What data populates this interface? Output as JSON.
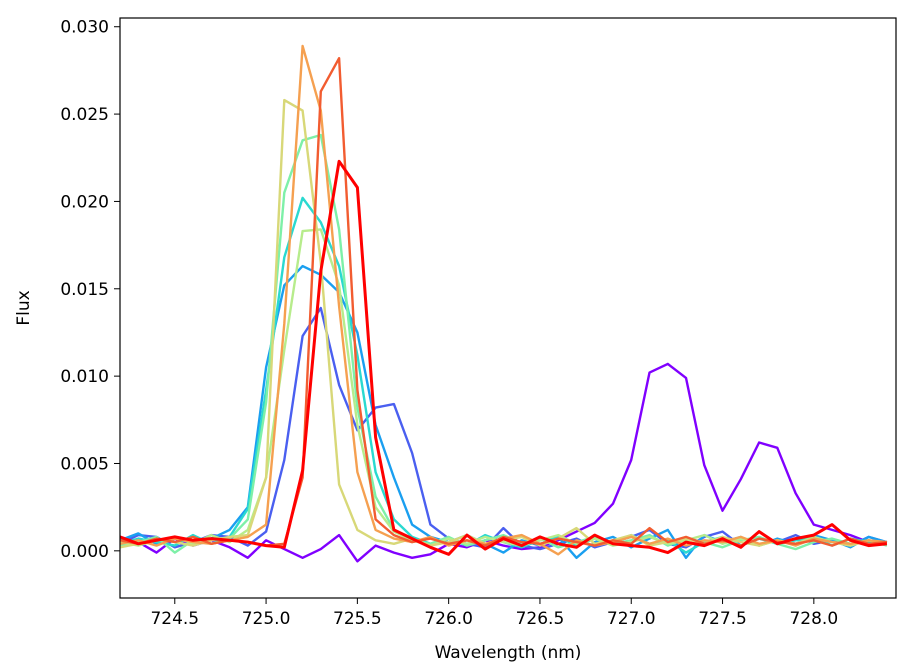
{
  "chart_data": {
    "type": "line",
    "xlabel": "Wavelength (nm)",
    "ylabel": "Flux",
    "xlim": [
      724.2,
      728.45
    ],
    "ylim": [
      -0.0027,
      0.0305
    ],
    "xticks": [
      724.5,
      725.0,
      725.5,
      726.0,
      726.5,
      727.0,
      727.5,
      728.0
    ],
    "xtick_labels": [
      "724.5",
      "725.0",
      "725.5",
      "726.0",
      "726.5",
      "727.0",
      "727.5",
      "728.0"
    ],
    "yticks": [
      0.0,
      0.005,
      0.01,
      0.015,
      0.02,
      0.025,
      0.03
    ],
    "ytick_labels": [
      "0.000",
      "0.005",
      "0.010",
      "0.015",
      "0.020",
      "0.025",
      "0.030"
    ],
    "grid": false,
    "legend": "none",
    "x": [
      724.2,
      724.3,
      724.4,
      724.5,
      724.6,
      724.7,
      724.8,
      724.9,
      725.0,
      725.1,
      725.2,
      725.3,
      725.4,
      725.5,
      725.6,
      725.7,
      725.8,
      725.9,
      726.0,
      726.1,
      726.2,
      726.3,
      726.4,
      726.5,
      726.6,
      726.7,
      726.8,
      726.9,
      727.0,
      727.1,
      727.2,
      727.3,
      727.4,
      727.5,
      727.6,
      727.7,
      727.8,
      727.9,
      728.0,
      728.1,
      728.2,
      728.3,
      728.4
    ],
    "series": [
      {
        "color": "#8000ff",
        "values": [
          0.0008,
          0.0005,
          -0.0001,
          0.0007,
          0.0003,
          0.0006,
          0.0002,
          -0.0004,
          0.0006,
          0.0001,
          -0.0004,
          0.0001,
          0.0009,
          -0.0006,
          0.0003,
          -0.0001,
          -0.0004,
          -0.0002,
          0.0004,
          0.0002,
          0.0006,
          0.0003,
          0.0001,
          0.0002,
          0.0006,
          0.0011,
          0.0016,
          0.0027,
          0.0052,
          0.0102,
          0.0107,
          0.0099,
          0.0049,
          0.0023,
          0.0041,
          0.0062,
          0.0059,
          0.0033,
          0.0015,
          0.0012,
          0.0009,
          0.0005,
          0.0004
        ]
      },
      {
        "color": "#4a5ff0",
        "values": [
          0.0004,
          0.0009,
          0.0008,
          0.0002,
          0.0005,
          0.0009,
          0.0008,
          0.0003,
          0.0011,
          0.0052,
          0.0123,
          0.0139,
          0.0095,
          0.0069,
          0.0082,
          0.0084,
          0.0056,
          0.0015,
          0.0007,
          0.0004,
          0.0002,
          0.0013,
          0.0003,
          0.0001,
          0.0004,
          0.0007,
          0.0002,
          0.0005,
          0.0008,
          0.0012,
          0.0004,
          0.0002,
          0.0008,
          0.0011,
          0.0003,
          0.0007,
          0.0005,
          0.0009,
          0.0004,
          0.0006,
          0.0003,
          0.0008,
          0.0005
        ]
      },
      {
        "color": "#1a9ff0",
        "values": [
          0.0006,
          0.001,
          0.0004,
          0.0008,
          0.0004,
          0.0007,
          0.0012,
          0.0025,
          0.0105,
          0.0152,
          0.0163,
          0.0158,
          0.0148,
          0.0125,
          0.0072,
          0.0042,
          0.0015,
          0.0008,
          0.0005,
          0.0009,
          0.0004,
          -0.0001,
          0.0006,
          0.0003,
          0.0008,
          -0.0004,
          0.0005,
          0.0008,
          0.0002,
          0.0007,
          0.0012,
          -0.0004,
          0.0009,
          0.0005,
          0.0008,
          0.0003,
          0.0007,
          0.0004,
          0.0009,
          0.0006,
          0.0002,
          0.0008,
          0.0005
        ]
      },
      {
        "color": "#2ad9d0",
        "values": [
          0.0004,
          0.0007,
          0.0005,
          0.0003,
          0.0009,
          0.0004,
          0.0008,
          0.0024,
          0.0092,
          0.0168,
          0.0202,
          0.0188,
          0.0163,
          0.0112,
          0.0045,
          0.0018,
          0.0008,
          0.0004,
          0.0007,
          0.0003,
          0.0009,
          0.0005,
          0.0002,
          0.0006,
          0.0008,
          0.0003,
          0.0007,
          0.0005,
          0.0009,
          0.0004,
          0.0006,
          -0.0001,
          0.0005,
          0.0008,
          0.0003,
          0.0007,
          0.0004,
          0.0006,
          0.0008,
          0.0003,
          0.0007,
          0.0005,
          0.0004
        ]
      },
      {
        "color": "#7ef0a8",
        "values": [
          0.0003,
          0.0005,
          0.0008,
          -0.0001,
          0.0006,
          0.0004,
          0.0007,
          0.0018,
          0.0085,
          0.0205,
          0.0235,
          0.0238,
          0.0184,
          0.0082,
          0.0031,
          0.0012,
          0.0006,
          0.0004,
          0.0008,
          0.0003,
          0.0006,
          0.0009,
          0.0004,
          0.0007,
          0.0002,
          0.0005,
          0.0008,
          0.0004,
          0.0006,
          0.0009,
          0.0003,
          0.0007,
          0.0005,
          0.0002,
          0.0006,
          0.0008,
          0.0004,
          0.0001,
          0.0005,
          0.0007,
          0.0004,
          0.0006,
          0.0003
        ]
      },
      {
        "color": "#b7ec8c",
        "values": [
          0.0005,
          0.0003,
          0.0006,
          0.0008,
          0.0004,
          0.0009,
          0.0005,
          0.0012,
          0.0042,
          0.0115,
          0.0183,
          0.0184,
          0.0152,
          0.0072,
          0.0025,
          0.0011,
          0.0006,
          0.0003,
          0.0007,
          0.0004,
          0.0008,
          0.0005,
          0.0003,
          0.0006,
          0.0009,
          0.0004,
          0.0007,
          0.0003,
          0.0005,
          0.0008,
          0.0004,
          0.0006,
          0.0009,
          0.0004,
          0.0007,
          0.0003,
          0.0006,
          0.0004,
          0.0008,
          0.0005,
          0.0003,
          0.0006,
          0.0004
        ]
      },
      {
        "color": "#d8d878",
        "values": [
          0.0002,
          0.0004,
          0.0007,
          0.0005,
          0.0003,
          0.0006,
          0.0008,
          0.0009,
          0.0042,
          0.0258,
          0.0252,
          0.0165,
          0.0038,
          0.0012,
          0.0006,
          0.0004,
          0.0007,
          0.0003,
          0.0005,
          0.0009,
          0.0004,
          0.0006,
          0.0008,
          0.0003,
          0.0007,
          0.0013,
          0.0004,
          0.0006,
          0.0009,
          0.0003,
          0.0005,
          0.0007,
          0.0004,
          0.0008,
          0.0005,
          0.0003,
          0.0006,
          0.0004,
          0.0007,
          0.0005,
          0.0003,
          0.0006,
          0.0004
        ]
      },
      {
        "color": "#f5a050",
        "values": [
          0.0004,
          0.0006,
          0.0003,
          0.0007,
          0.0005,
          0.0004,
          0.0006,
          0.0008,
          0.0015,
          0.013,
          0.0289,
          0.0252,
          0.014,
          0.0045,
          0.0012,
          0.0007,
          0.0005,
          0.0008,
          0.0003,
          0.0006,
          0.0004,
          0.0007,
          0.0009,
          0.0004,
          -0.0002,
          0.0006,
          0.0003,
          0.0005,
          0.0008,
          0.0004,
          0.0007,
          0.0003,
          0.0006,
          0.0005,
          0.0008,
          0.0004,
          0.0006,
          0.0003,
          0.0007,
          0.0005,
          0.0004,
          0.0006,
          0.0005
        ]
      },
      {
        "color": "#f25c30",
        "values": [
          0.0006,
          0.0004,
          0.0007,
          0.0005,
          0.0008,
          0.0004,
          0.0006,
          0.0005,
          0.0003,
          0.0004,
          0.0042,
          0.0263,
          0.0282,
          0.0092,
          0.0018,
          0.0009,
          0.0005,
          0.0007,
          0.0004,
          0.0006,
          0.0003,
          0.0008,
          0.0005,
          0.0004,
          0.0007,
          0.0005,
          0.0003,
          0.0006,
          0.0004,
          0.0013,
          0.0005,
          0.0008,
          0.0004,
          0.0006,
          0.0003,
          0.0007,
          0.0005,
          0.0004,
          0.0006,
          0.0003,
          0.0007,
          0.0004,
          0.0005
        ]
      },
      {
        "color": "#ff0000",
        "values": [
          0.0008,
          0.0004,
          0.0006,
          0.0008,
          0.0006,
          0.0007,
          0.0006,
          0.0005,
          0.0003,
          0.0002,
          0.0046,
          0.016,
          0.0223,
          0.0208,
          0.0065,
          0.0012,
          0.0007,
          0.0002,
          -0.0002,
          0.0009,
          0.0001,
          0.0007,
          0.0003,
          0.0008,
          0.0004,
          0.0002,
          0.0009,
          0.0004,
          0.0003,
          0.0002,
          -0.0001,
          0.0005,
          0.0003,
          0.0007,
          0.0002,
          0.0011,
          0.0004,
          0.0007,
          0.0009,
          0.0015,
          0.0006,
          0.0003,
          0.0004
        ]
      }
    ]
  }
}
